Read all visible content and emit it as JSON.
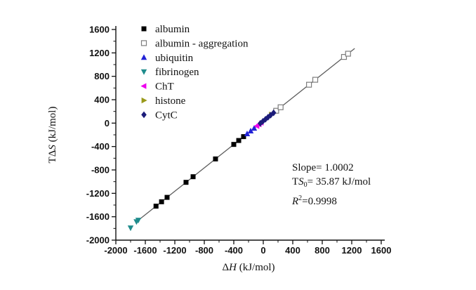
{
  "chart_data": {
    "type": "scatter",
    "title": "",
    "xlabel": "ΔH (kJ/mol)",
    "ylabel": "TΔS (kJ/mol)",
    "xlabel_parts": [
      {
        "t": "Δ"
      },
      {
        "t": "H",
        "style": "italic"
      },
      {
        "t": " (kJ/mol)"
      }
    ],
    "ylabel_parts": [
      {
        "t": "T"
      },
      {
        "t": "Δ"
      },
      {
        "t": "S",
        "style": "italic"
      },
      {
        "t": " (kJ/mol)"
      }
    ],
    "xlim": [
      -2000,
      1600
    ],
    "ylim": [
      -2000,
      1600
    ],
    "x_ticks": [
      -2000,
      -1600,
      -1200,
      -800,
      -400,
      0,
      400,
      800,
      1200,
      1600
    ],
    "y_ticks": [
      -2000,
      -1600,
      -1200,
      -800,
      -400,
      0,
      400,
      800,
      1200,
      1600
    ],
    "minor_tick_step": 200,
    "grid": false,
    "legend_position": "top-left-inside",
    "axis_color": "#111111",
    "series": [
      {
        "name": "albumin",
        "marker": "square-filled",
        "color": "#000000",
        "points": [
          [
            -1455,
            -1419
          ],
          [
            -1380,
            -1344
          ],
          [
            -1305,
            -1269
          ],
          [
            -1048,
            -1012
          ],
          [
            -952,
            -916
          ],
          [
            -648,
            -612
          ],
          [
            -400,
            -364
          ],
          [
            -333,
            -297
          ],
          [
            -267,
            -231
          ]
        ]
      },
      {
        "name": "albumin - aggregation",
        "marker": "square-open",
        "color": "#7d7d7d",
        "points": [
          [
            175,
            211
          ],
          [
            235,
            271
          ],
          [
            620,
            656
          ],
          [
            705,
            741
          ],
          [
            1095,
            1131
          ],
          [
            1150,
            1186
          ]
        ]
      },
      {
        "name": "ubiquitin",
        "marker": "triangle-up",
        "color": "#2222d6",
        "points": [
          [
            -219,
            -183
          ],
          [
            -171,
            -135
          ],
          [
            -124,
            -88
          ]
        ]
      },
      {
        "name": "fibrinogen",
        "marker": "triangle-down",
        "color": "#1f8c8c",
        "points": [
          [
            -1800,
            -1790
          ],
          [
            -1720,
            -1684
          ],
          [
            -1695,
            -1659
          ]
        ]
      },
      {
        "name": "ChT",
        "marker": "triangle-left",
        "color": "#ee00ee",
        "points": [
          [
            -86,
            -50
          ],
          [
            -57,
            -21
          ],
          [
            -29,
            7
          ]
        ]
      },
      {
        "name": "histone",
        "marker": "triangle-right",
        "color": "#99991a",
        "points": [
          [
            110,
            146
          ]
        ]
      },
      {
        "name": "CytC",
        "marker": "diamond",
        "color": "#1c1c7a",
        "points": [
          [
            -40,
            -4
          ],
          [
            -5,
            31
          ],
          [
            30,
            66
          ],
          [
            65,
            101
          ],
          [
            100,
            136
          ],
          [
            140,
            176
          ]
        ]
      }
    ],
    "fit_line": {
      "slope": 1.0002,
      "intercept": 35.87,
      "x_range": [
        -1705,
        1240
      ],
      "color": "#5c5c5c"
    },
    "annotation": {
      "slope_text": "Slope= 1.0002",
      "ts0_text": "TS0= 35.87 kJ/mol",
      "r2_text": "R2=0.9998",
      "lines": [
        {
          "name": "annotation-slope",
          "parts": [
            {
              "t": "Slope= 1.0002"
            }
          ]
        },
        {
          "name": "annotation-ts0",
          "parts": [
            {
              "t": "T"
            },
            {
              "t": "S",
              "style": "italic"
            },
            {
              "t": "0",
              "script": "sub"
            },
            {
              "t": "= 35.87 kJ/mol"
            }
          ]
        },
        {
          "name": "annotation-r2",
          "parts": [
            {
              "t": "R",
              "style": "italic"
            },
            {
              "t": "2",
              "script": "sup"
            },
            {
              "t": "=0.9998"
            }
          ]
        }
      ]
    }
  }
}
